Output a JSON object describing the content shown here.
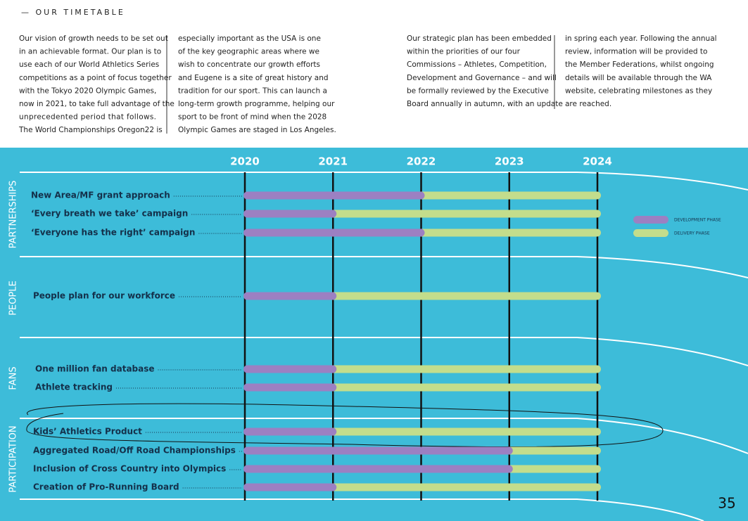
{
  "header": {
    "title": "— OUR TIMETABLE"
  },
  "columns": [
    [
      "Our vision of growth needs to be set out",
      "in an achievable format. Our plan is to",
      "use each of our World Athletics Series",
      "competitions as a point of focus together",
      "with the Tokyo 2020 Olympic Games,",
      "now in 2021, to take full advantage of the",
      "unprecedented period that follows.",
      "The World Championships Oregon22 is"
    ],
    [
      "especially important as the USA is one",
      "of the key geographic areas where we",
      "wish to concentrate our growth efforts",
      "and Eugene is a site of great history and",
      "tradition for our sport. This can launch a",
      "long-term growth programme, helping our",
      "sport to be front of mind when the 2028",
      "Olympic Games are staged in Los Angeles."
    ],
    [
      "Our strategic plan has been embedded",
      "within the priorities of our four",
      "Commissions – Athletes, Competition,",
      "Development and Governance – and will",
      "be formally reviewed by the Executive",
      "Board annually in autumn, with an update"
    ],
    [
      "in spring each year. Following the annual",
      "review, information will be provided to",
      "the Member Federations, whilst ongoing",
      "details will be available through the WA",
      "website, celebrating milestones as they",
      "are reached."
    ]
  ],
  "timeline": {
    "years": [
      2020,
      2021,
      2022,
      2023,
      2024
    ],
    "development_color": "#9c80c2",
    "delivery_color": "#c3dd8c",
    "legend": {
      "development": "DEVELOPMENT PHASE",
      "delivery": "DELIVERY PHASE"
    },
    "sections": [
      {
        "name": "PARTNERSHIPS",
        "items": [
          {
            "label": "New Area/MF grant approach",
            "start": 2020,
            "development_end": 2022,
            "end": 2024
          },
          {
            "label": "‘Every breath we take’ campaign",
            "start": 2020,
            "development_end": 2021,
            "end": 2024
          },
          {
            "label": "‘Everyone has the right’ campaign",
            "start": 2020,
            "development_end": 2022,
            "end": 2024
          }
        ]
      },
      {
        "name": "PEOPLE",
        "items": [
          {
            "label": "People plan for our workforce",
            "start": 2020,
            "development_end": 2021,
            "end": 2024
          }
        ]
      },
      {
        "name": "FANS",
        "items": [
          {
            "label": "One million fan database",
            "start": 2020,
            "development_end": 2021,
            "end": 2024
          },
          {
            "label": "Athlete tracking",
            "start": 2020,
            "development_end": 2021,
            "end": 2024
          }
        ]
      },
      {
        "name": "PARTICIPATION",
        "items": [
          {
            "label": "Kids’ Athletics Product",
            "start": 2020,
            "development_end": 2021,
            "end": 2024
          },
          {
            "label": "Aggregated Road/Off Road Championships",
            "start": 2020,
            "development_end": 2023,
            "end": 2024
          },
          {
            "label": "Inclusion of Cross Country into Olympics",
            "start": 2020,
            "development_end": 2023,
            "end": 2024
          },
          {
            "label": "Creation of Pro-Running Board",
            "start": 2020,
            "development_end": 2021,
            "end": 2024
          }
        ]
      }
    ]
  },
  "page_number": 35
}
